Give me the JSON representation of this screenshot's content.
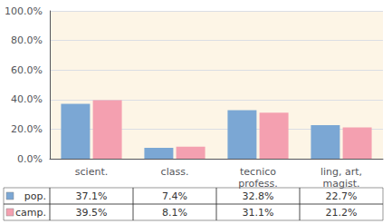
{
  "chart_data": {
    "type": "bar",
    "categories": [
      "scient.",
      "class.",
      "tecnico\nprofess.",
      "ling, art,\nmagist."
    ],
    "series": [
      {
        "name": "pop.",
        "color": "#7ba7d4",
        "values": [
          37.1,
          7.4,
          32.8,
          22.7
        ],
        "value_labels": [
          "37.1%",
          "7.4%",
          "32.8%",
          "22.7%"
        ]
      },
      {
        "name": "camp.",
        "color": "#f4a0b0",
        "values": [
          39.5,
          8.1,
          31.1,
          21.2
        ],
        "value_labels": [
          "39.5%",
          "8.1%",
          "31.1%",
          "21.2%"
        ]
      }
    ],
    "ylim": [
      0,
      100
    ],
    "yticks": [
      {
        "value": 0,
        "label": "0.0%"
      },
      {
        "value": 20,
        "label": "20.0%"
      },
      {
        "value": 40,
        "label": "40.0%"
      },
      {
        "value": 60,
        "label": "60.0%"
      },
      {
        "value": 80,
        "label": "80.0%"
      },
      {
        "value": 100,
        "label": "100.0%"
      }
    ],
    "grid": true
  }
}
